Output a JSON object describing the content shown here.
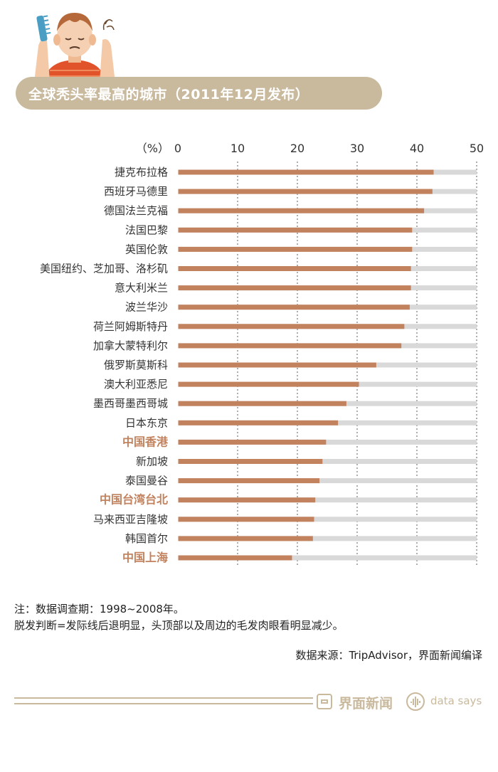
{
  "header": {
    "title": "全球秃头率最高的城市（2011年12月发布）"
  },
  "colors": {
    "bar": "#c2825e",
    "track": "#d9d9d9",
    "highlight_label": "#c2825e",
    "banner": "#c9b99d"
  },
  "chart_data": {
    "type": "bar",
    "orientation": "horizontal",
    "unit_label": "（%）",
    "xlim": [
      0,
      50
    ],
    "xticks": [
      "0",
      "10",
      "20",
      "30",
      "40",
      "50"
    ],
    "grid": "dotted vertical",
    "categories": [
      "捷克布拉格",
      "西班牙马德里",
      "德国法兰克福",
      "法国巴黎",
      "英国伦敦",
      "美国纽约、芝加哥、洛杉矶",
      "意大利米兰",
      "波兰华沙",
      "荷兰阿姆斯特丹",
      "加拿大蒙特利尔",
      "俄罗斯莫斯科",
      "澳大利亚悉尼",
      "墨西哥墨西哥城",
      "日本东京",
      "中国香港",
      "新加坡",
      "泰国曼谷",
      "中国台湾台北",
      "马来西亚吉隆坡",
      "韩国首尔",
      "中国上海"
    ],
    "values": [
      42.8,
      42.6,
      41.2,
      39.2,
      39.2,
      39.0,
      39.0,
      38.8,
      37.9,
      37.4,
      33.2,
      30.3,
      28.2,
      26.8,
      24.8,
      24.2,
      23.7,
      23.0,
      22.8,
      22.6,
      19.1
    ],
    "highlight": [
      "中国香港",
      "中国台湾台北",
      "中国上海"
    ]
  },
  "notes": {
    "line1": "注：数据调查期：1998~2008年。",
    "line2": "脱发判断=发际线后退明显，头顶部以及周边的毛发肉眼看明显减少。"
  },
  "source": "数据来源：TripAdvisor，界面新闻编译",
  "footer": {
    "brand": "界面新闻",
    "tagline": "data says",
    "logo_icon": "jiemian-logo-icon",
    "data_says_icon": "data-says-icon"
  }
}
